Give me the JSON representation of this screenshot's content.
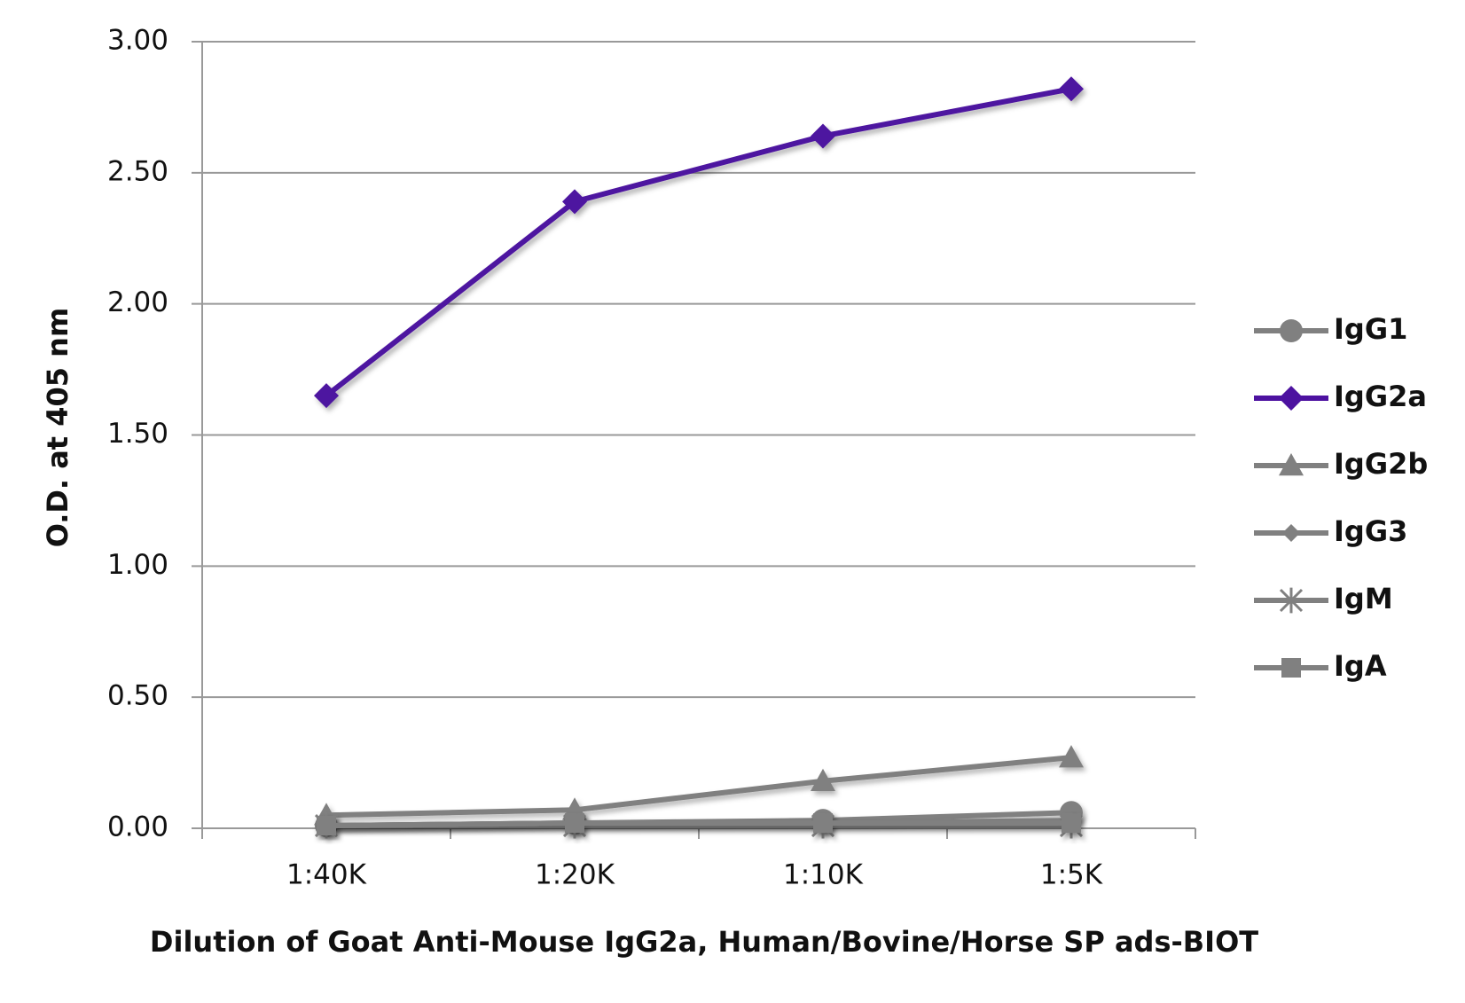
{
  "chart_data": {
    "type": "line",
    "x_label": "Dilution of Goat Anti-Mouse IgG2a, Human/Bovine/Horse SP ads-BIOT",
    "y_label": "O.D. at 405 nm",
    "categories": [
      "1:40K",
      "1:20K",
      "1:10K",
      "1:5K"
    ],
    "series": [
      {
        "name": "IgG1",
        "color": "#808080",
        "marker": "circle",
        "values": [
          0.01,
          0.02,
          0.03,
          0.06
        ]
      },
      {
        "name": "IgG2a",
        "color": "#4d12a0",
        "marker": "diamond",
        "values": [
          1.65,
          2.39,
          2.64,
          2.82
        ]
      },
      {
        "name": "IgG2b",
        "color": "#808080",
        "marker": "triangle",
        "values": [
          0.05,
          0.07,
          0.18,
          0.27
        ]
      },
      {
        "name": "IgG3",
        "color": "#808080",
        "marker": "small-diamond",
        "values": [
          0.01,
          0.02,
          0.02,
          0.03
        ]
      },
      {
        "name": "IgM",
        "color": "#808080",
        "marker": "asterisk",
        "values": [
          0.01,
          0.01,
          0.01,
          0.01
        ]
      },
      {
        "name": "IgA",
        "color": "#808080",
        "marker": "square",
        "values": [
          0.01,
          0.02,
          0.02,
          0.02
        ]
      }
    ],
    "ylim": [
      0,
      3
    ],
    "yticks": [
      {
        "value": 0,
        "label": "0.00"
      },
      {
        "value": 0.5,
        "label": "0.50"
      },
      {
        "value": 1,
        "label": "1.00"
      },
      {
        "value": 1.5,
        "label": "1.50"
      },
      {
        "value": 2,
        "label": "2.00"
      },
      {
        "value": 2.5,
        "label": "2.50"
      },
      {
        "value": 3,
        "label": "3.00"
      }
    ],
    "grid": true,
    "legend": "right"
  }
}
